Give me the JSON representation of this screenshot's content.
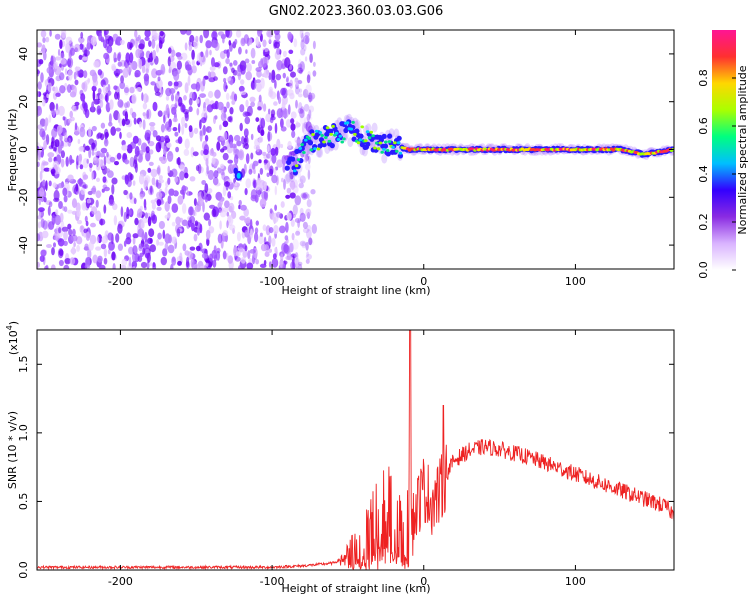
{
  "title": "GN02.2023.360.03.03.G06",
  "chart_data": [
    {
      "type": "heatmap",
      "xlabel": "Height of straight line (km)",
      "ylabel": "Frequency (Hz)",
      "xlim": [
        -255,
        165
      ],
      "ylim": [
        -50,
        50
      ],
      "xticks": [
        -200,
        -100,
        0,
        100
      ],
      "yticks": [
        -40,
        -20,
        0,
        20,
        40
      ],
      "colorbar": {
        "label": "Normalized spectral amplitude",
        "range": [
          0,
          1
        ],
        "ticks": [
          "0.0",
          "0.2",
          "0.4",
          "0.6",
          "0.8"
        ],
        "colors": [
          "#ffffff",
          "#d9b3ff",
          "#8a2be2",
          "#3300ff",
          "#00bfff",
          "#00ff7f",
          "#aaff00",
          "#ffd700",
          "#ff3030",
          "#ff1493"
        ]
      },
      "noise_region": {
        "x_range": [
          -255,
          -80
        ],
        "y_range": [
          -50,
          50
        ]
      },
      "signal_ridge": [
        {
          "x": -122,
          "y": -11
        },
        {
          "x": -85,
          "y": -6
        },
        {
          "x": -75,
          "y": 3
        },
        {
          "x": -60,
          "y": 6
        },
        {
          "x": -48,
          "y": 8
        },
        {
          "x": -35,
          "y": 4
        },
        {
          "x": -25,
          "y": 2
        },
        {
          "x": -10,
          "y": 0
        },
        {
          "x": 0,
          "y": 0
        },
        {
          "x": 50,
          "y": 0
        },
        {
          "x": 100,
          "y": 0
        },
        {
          "x": 130,
          "y": 0
        },
        {
          "x": 145,
          "y": -2
        },
        {
          "x": 165,
          "y": 0
        }
      ]
    },
    {
      "type": "line",
      "xlabel": "Height of straight line (km)",
      "ylabel": "SNR (10 * v/v)",
      "ylabel_scale": "(x10",
      "ylabel_scale_exp": "4",
      "ylabel_scale_close": ")",
      "xlim": [
        -255,
        165
      ],
      "ylim": [
        0,
        1.75
      ],
      "xticks": [
        -200,
        -100,
        0,
        100
      ],
      "yticks": [
        "0.0",
        "0.5",
        "1.0",
        "1.5"
      ],
      "color": "#ee2222",
      "series": [
        {
          "x": [
            -255,
            -200,
            -150,
            -100,
            -80,
            -60,
            -50,
            -45,
            -40,
            -35,
            -30,
            -25,
            -20,
            -15,
            -12,
            -10,
            -9,
            -8,
            -5,
            0,
            5,
            10,
            15,
            20,
            30,
            40,
            50,
            60,
            70,
            80,
            90,
            100,
            110,
            120,
            130,
            140,
            150,
            160,
            165
          ],
          "y": [
            0.02,
            0.02,
            0.02,
            0.02,
            0.03,
            0.05,
            0.1,
            0.18,
            0.3,
            0.4,
            0.45,
            0.42,
            0.4,
            0.35,
            0.3,
            0.4,
            1.75,
            0.3,
            0.45,
            0.6,
            0.5,
            0.55,
            0.7,
            0.8,
            0.87,
            0.9,
            0.88,
            0.85,
            0.82,
            0.78,
            0.74,
            0.7,
            0.66,
            0.62,
            0.58,
            0.54,
            0.5,
            0.46,
            0.4
          ]
        }
      ],
      "spikes": [
        {
          "x": -9,
          "y": 1.75
        },
        {
          "x": 13,
          "y": 1.2
        }
      ]
    }
  ]
}
